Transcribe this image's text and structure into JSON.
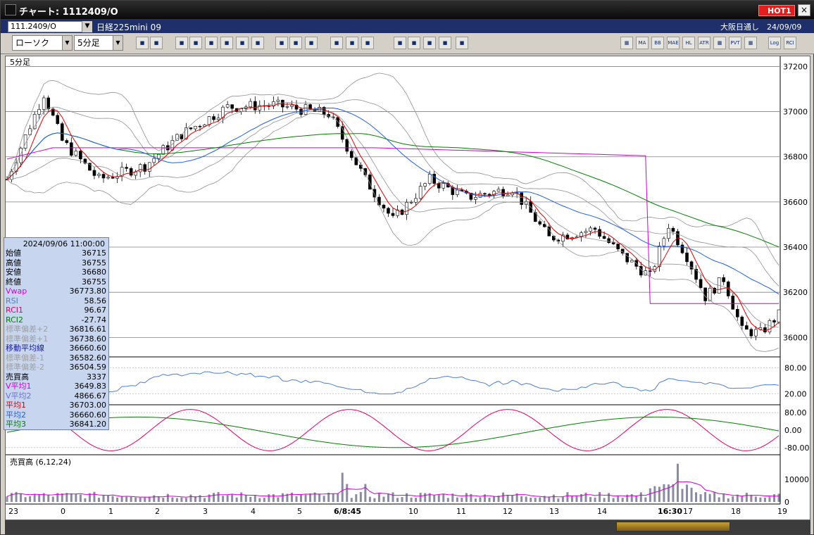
{
  "window": {
    "title": "チャート: 1112409/O",
    "hot_badge": "HOT1",
    "close": "×"
  },
  "symbol_bar": {
    "code": "111.2409/O",
    "name": "日経225mini 09",
    "market_info": "大阪日通し　24/09/09"
  },
  "toolbar": {
    "chart_type": "ローソク",
    "interval": "5分足",
    "icons_left": [
      "zoom-icon",
      "crosshair-icon",
      "draw-line-icon",
      "pen-icon",
      "cursor-icon",
      "arrow-icon",
      "copy-icon",
      "delete-icon",
      "candle-icon",
      "candle-ab-icon",
      "all-icon",
      "settings-icon",
      "brush-icon",
      "palette-icon",
      "analysis-icon",
      "magnify-chart-icon",
      "compare-icon",
      "print-icon",
      "disabled-icon"
    ],
    "icons_right": [
      "candle-chart-icon",
      "MA",
      "BB",
      "MAE",
      "HL",
      "ATR",
      "ichimoku-icon",
      "PVT",
      "frame-icon",
      "Log",
      "RCI"
    ]
  },
  "chart": {
    "label": "5分足",
    "volume_label": "売買高 (6,12,24)",
    "y_ticks": [
      "37200",
      "37000",
      "36800",
      "36600",
      "36400",
      "36200",
      "36000"
    ],
    "rsi_ticks": [
      "80.00",
      "20.00"
    ],
    "rci_ticks": [
      "80.00",
      "0.00",
      "-80.00"
    ],
    "vol_ticks": [
      "10000",
      "0"
    ],
    "x_ticks": [
      "23",
      "0",
      "1",
      "2",
      "3",
      "4",
      "5",
      "6/8:45",
      "10",
      "11",
      "12",
      "13",
      "14",
      "16:30",
      "17",
      "18",
      "19"
    ],
    "colors": {
      "ma_short": "#e00000",
      "ma_mid": "#2060e0",
      "ma_long": "#008000",
      "vwap": "#d000d0",
      "bollinger": "#909090",
      "rsi": "#4a7fd8",
      "rci1": "#e0006a",
      "rci2": "#008000"
    }
  },
  "info_panel": {
    "datetime": "2024/09/06 11:00:00",
    "rows": [
      {
        "label": "始値",
        "value": "36715",
        "color": "#000000"
      },
      {
        "label": "高値",
        "value": "36755",
        "color": "#000000"
      },
      {
        "label": "安値",
        "value": "36680",
        "color": "#000000"
      },
      {
        "label": "終値",
        "value": "36755",
        "color": "#000000"
      },
      {
        "label": "Vwap",
        "value": "36773.80",
        "color": "#d000d0"
      },
      {
        "label": "RSI",
        "value": "58.56",
        "color": "#4a7fd8"
      },
      {
        "label": "RCI1",
        "value": "96.67",
        "color": "#e0006a"
      },
      {
        "label": "RCI2",
        "value": "-27.74",
        "color": "#008000"
      },
      {
        "label": "標準偏差+2",
        "value": "36816.61",
        "color": "#a0a0a0"
      },
      {
        "label": "標準偏差+1",
        "value": "36738.60",
        "color": "#a0a0a0"
      },
      {
        "label": "移動平均線",
        "value": "36660.60",
        "color": "#1a1aa0"
      },
      {
        "label": "標準偏差-1",
        "value": "36582.60",
        "color": "#a0a0a0"
      },
      {
        "label": "標準偏差-2",
        "value": "36504.59",
        "color": "#a0a0a0"
      },
      {
        "label": "売買高",
        "value": "3337",
        "color": "#000000"
      },
      {
        "label": "V平均1",
        "value": "3649.83",
        "color": "#d000d0"
      },
      {
        "label": "V平均2",
        "value": "4866.67",
        "color": "#7070d0"
      },
      {
        "label": "平均1",
        "value": "36703.00",
        "color": "#e00000"
      },
      {
        "label": "平均2",
        "value": "36660.60",
        "color": "#2060e0"
      },
      {
        "label": "平均3",
        "value": "36841.20",
        "color": "#008000"
      }
    ]
  }
}
